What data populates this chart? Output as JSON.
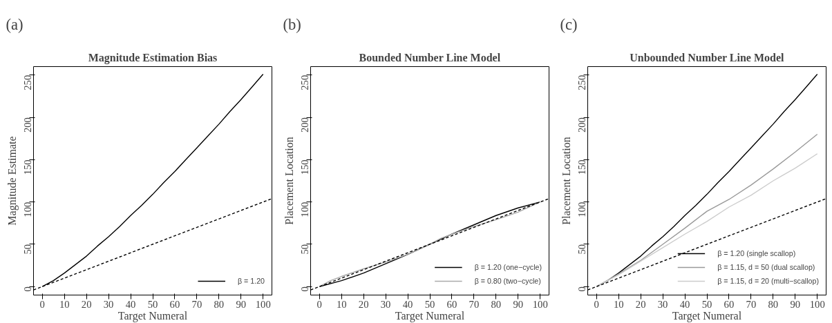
{
  "chart_data": [
    {
      "type": "line",
      "title": "Magnitude Estimation Bias",
      "xlabel": "Target Numeral",
      "ylabel": "Magnitude Estimate",
      "annotations": [
        "(a)"
      ],
      "xlim": [
        -4,
        104
      ],
      "ylim": [
        -10,
        260
      ],
      "xticks": [
        0,
        10,
        20,
        30,
        40,
        50,
        60,
        70,
        80,
        90,
        100
      ],
      "yticks": [
        0,
        50,
        100,
        150,
        200,
        250
      ],
      "grid": false,
      "legend": "bottom right",
      "series": [
        {
          "name": "β = 1.20",
          "color": "#000000",
          "x": [
            0,
            5,
            10,
            15,
            20,
            25,
            30,
            35,
            40,
            45,
            50,
            55,
            60,
            65,
            70,
            75,
            80,
            85,
            90,
            95,
            100
          ],
          "values": [
            0,
            7,
            16,
            26,
            36,
            48,
            59,
            71,
            84,
            96,
            109,
            123,
            136,
            150,
            164,
            178,
            192,
            207,
            221,
            236,
            251
          ]
        },
        {
          "color": "#000000",
          "line_style": "dashed",
          "x": [
            -4,
            104
          ],
          "values": [
            -4,
            104
          ]
        }
      ]
    },
    {
      "type": "line",
      "title": "Bounded Number Line Model",
      "xlabel": "Target Numeral",
      "ylabel": "Placement Location",
      "annotations": [
        "(b)"
      ],
      "xlim": [
        -4,
        104
      ],
      "ylim": [
        -10,
        260
      ],
      "xticks": [
        0,
        10,
        20,
        30,
        40,
        50,
        60,
        70,
        80,
        90,
        100
      ],
      "yticks": [
        0,
        50,
        100,
        150,
        200,
        250
      ],
      "grid": false,
      "legend": "bottom right",
      "series": [
        {
          "name": "β = 1.20 (one−cycle)",
          "color": "#000000",
          "x": [
            0,
            10,
            20,
            30,
            40,
            50,
            60,
            70,
            80,
            90,
            100
          ],
          "values": [
            0,
            7,
            16,
            27,
            38,
            50,
            62,
            73,
            84,
            93,
            100
          ]
        },
        {
          "name": "β = 0.80 (two−cycle)",
          "color": "#aaaaaa",
          "x": [
            0,
            5,
            10,
            20,
            30,
            40,
            50,
            55,
            60,
            70,
            80,
            90,
            100
          ],
          "values": [
            0,
            7,
            12,
            21,
            29,
            38,
            50,
            57,
            62,
            71,
            79,
            88,
            100
          ]
        },
        {
          "color": "#000000",
          "line_style": "dashed",
          "x": [
            -4,
            104
          ],
          "values": [
            -4,
            104
          ]
        }
      ]
    },
    {
      "type": "line",
      "title": "Unbounded Number Line Model",
      "xlabel": "Target Numeral",
      "ylabel": "Placement Location",
      "annotations": [
        "(c)"
      ],
      "xlim": [
        -4,
        104
      ],
      "ylim": [
        -10,
        260
      ],
      "xticks": [
        0,
        10,
        20,
        30,
        40,
        50,
        60,
        70,
        80,
        90,
        100
      ],
      "yticks": [
        0,
        50,
        100,
        150,
        200,
        250
      ],
      "grid": false,
      "legend": "bottom right",
      "series": [
        {
          "name": "β = 1.20 (single scallop)",
          "color": "#000000",
          "x": [
            0,
            5,
            10,
            15,
            20,
            25,
            30,
            35,
            40,
            45,
            50,
            55,
            60,
            65,
            70,
            75,
            80,
            85,
            90,
            95,
            100
          ],
          "values": [
            0,
            7,
            16,
            26,
            36,
            48,
            59,
            71,
            84,
            96,
            109,
            123,
            136,
            150,
            164,
            178,
            192,
            207,
            221,
            236,
            251
          ]
        },
        {
          "name": "β = 1.15, d = 50 (dual scallop)",
          "color": "#999999",
          "x": [
            0,
            10,
            20,
            30,
            40,
            50,
            60,
            70,
            80,
            90,
            100
          ],
          "values": [
            0,
            15,
            31,
            50,
            69,
            89,
            103,
            120,
            139,
            159,
            180
          ]
        },
        {
          "name": "β = 1.15, d = 20 (multi−scallop)",
          "color": "#cccccc",
          "x": [
            0,
            10,
            20,
            30,
            40,
            50,
            60,
            70,
            80,
            90,
            100
          ],
          "values": [
            0,
            14,
            30,
            46,
            62,
            77,
            94,
            108,
            125,
            140,
            157
          ]
        },
        {
          "color": "#000000",
          "line_style": "dashed",
          "x": [
            -4,
            104
          ],
          "values": [
            -4,
            104
          ]
        }
      ]
    }
  ]
}
